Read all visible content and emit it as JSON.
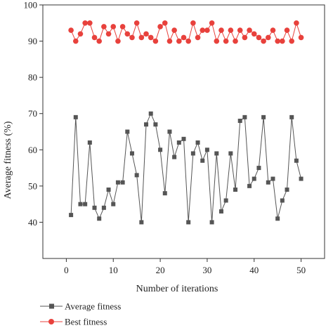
{
  "chart_data": {
    "type": "line",
    "xlabel": "Number of iterations",
    "ylabel": "Average fitness (%)",
    "xlim": [
      -5,
      55
    ],
    "ylim": [
      30,
      100
    ],
    "x_ticks": [
      0,
      10,
      20,
      30,
      40,
      50
    ],
    "y_ticks": [
      40,
      50,
      60,
      70,
      80,
      90,
      100
    ],
    "legend_position": "bottom-left",
    "grid": false,
    "x": [
      1,
      2,
      3,
      4,
      5,
      6,
      7,
      8,
      9,
      10,
      11,
      12,
      13,
      14,
      15,
      16,
      17,
      18,
      19,
      20,
      21,
      22,
      23,
      24,
      25,
      26,
      27,
      28,
      29,
      30,
      31,
      32,
      33,
      34,
      35,
      36,
      37,
      38,
      39,
      40,
      41,
      42,
      43,
      44,
      45,
      46,
      47,
      48,
      49,
      50
    ],
    "series": [
      {
        "name": "Average fitness",
        "color": "#555555",
        "marker": "square",
        "values": [
          42,
          69,
          45,
          45,
          62,
          44,
          41,
          44,
          49,
          45,
          51,
          51,
          65,
          59,
          53,
          40,
          67,
          70,
          67,
          60,
          48,
          65,
          58,
          62,
          63,
          40,
          59,
          62,
          57,
          60,
          40,
          59,
          43,
          46,
          59,
          49,
          68,
          69,
          50,
          52,
          55,
          69,
          51,
          52,
          41,
          46,
          49,
          69,
          57,
          52
        ]
      },
      {
        "name": "Best fitness",
        "color": "#e8413c",
        "marker": "circle",
        "values": [
          93,
          90,
          92,
          95,
          95,
          91,
          90,
          94,
          92,
          94,
          90,
          94,
          92,
          91,
          95,
          91,
          92,
          91,
          90,
          94,
          95,
          90,
          93,
          90,
          91,
          90,
          95,
          91,
          93,
          93,
          95,
          90,
          93,
          90,
          93,
          90,
          93,
          91,
          93,
          92,
          91,
          90,
          91,
          93,
          90,
          90,
          93,
          90,
          95,
          91
        ]
      }
    ]
  }
}
